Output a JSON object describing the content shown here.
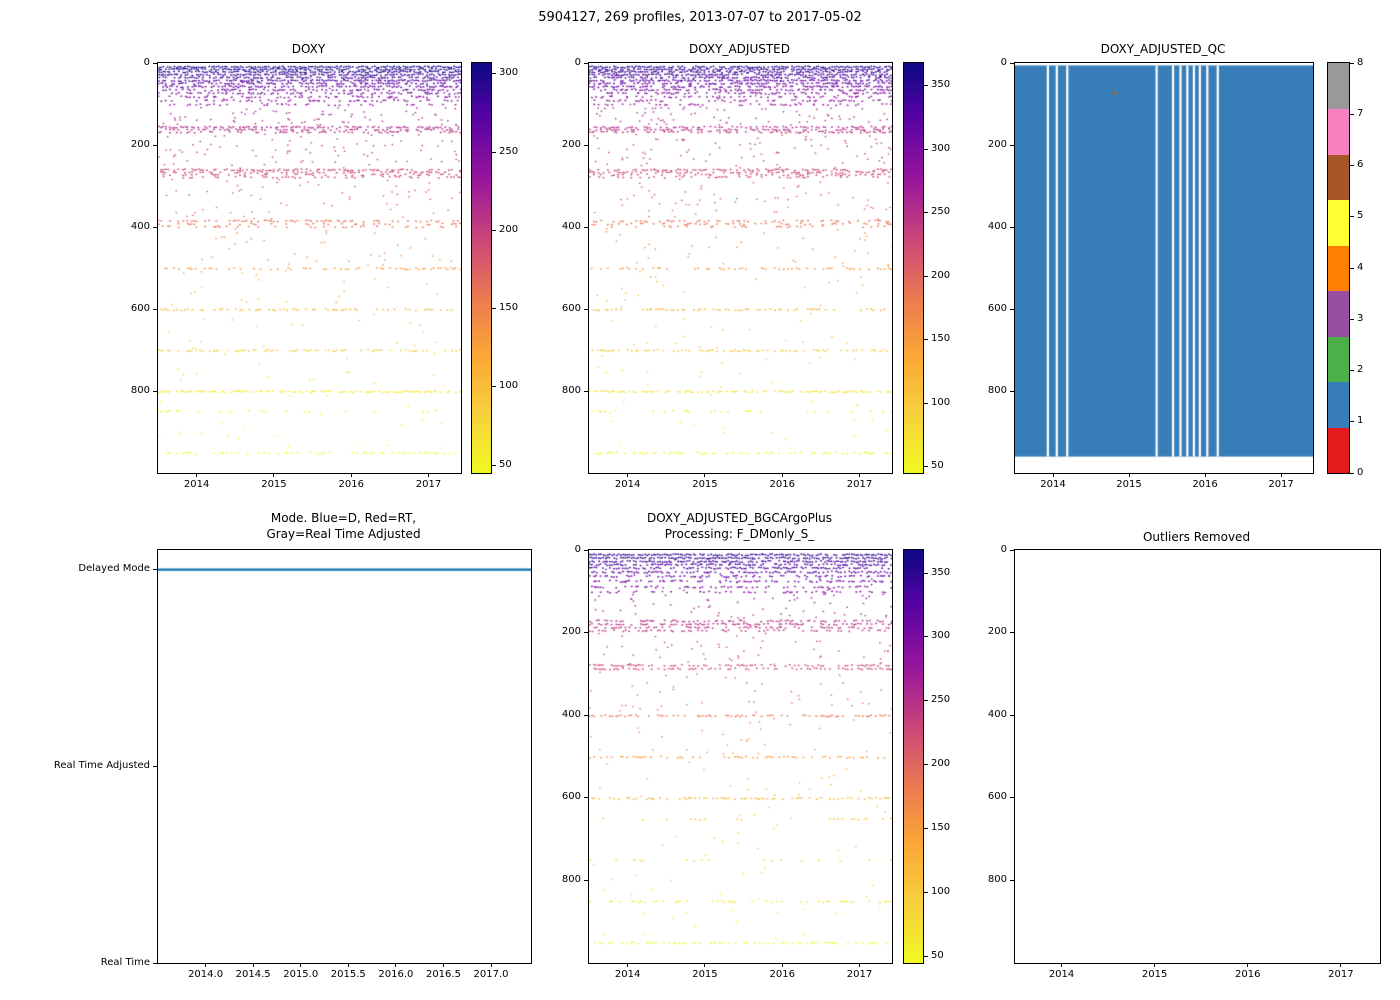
{
  "figure_title": "5904127, 269 profiles, 2013-07-07 to 2017-05-02",
  "colors": {
    "background": "#ffffff",
    "axis": "#000000",
    "mode_line_blue": "#1f77b4",
    "qc_fill": "#377eb8"
  },
  "plasma_reversed_stops": [
    {
      "t": 0.0,
      "c": "#0d0887"
    },
    {
      "t": 0.14,
      "c": "#5b02a3"
    },
    {
      "t": 0.29,
      "c": "#9a179b"
    },
    {
      "t": 0.43,
      "c": "#ca4678"
    },
    {
      "t": 0.57,
      "c": "#eb7852"
    },
    {
      "t": 0.71,
      "c": "#fba636"
    },
    {
      "t": 0.86,
      "c": "#f7d13d"
    },
    {
      "t": 1.0,
      "c": "#f0f921"
    }
  ],
  "chart_data": [
    {
      "name": "doxy",
      "type": "scatter",
      "title": "DOXY",
      "xlabel": "",
      "ylabel": "",
      "xlim": [
        2013.5,
        2017.42
      ],
      "x_ticks": [
        2014,
        2015,
        2016,
        2017
      ],
      "ylim": [
        0,
        1000
      ],
      "y_ticks": [
        0,
        200,
        400,
        600,
        800
      ],
      "y_inverted": true,
      "colorbar": {
        "vmin": 45,
        "vmax": 307,
        "ticks": [
          50,
          100,
          150,
          200,
          250,
          300
        ]
      },
      "bands": [
        {
          "d": 8,
          "v": 302,
          "p": 0.92
        },
        {
          "d": 14,
          "v": 297,
          "p": 0.85
        },
        {
          "d": 20,
          "v": 292,
          "p": 0.8
        },
        {
          "d": 27,
          "v": 287,
          "p": 0.82
        },
        {
          "d": 34,
          "v": 281,
          "p": 0.72
        },
        {
          "d": 41,
          "v": 276,
          "p": 0.75
        },
        {
          "d": 48,
          "v": 270,
          "p": 0.62
        },
        {
          "d": 56,
          "v": 264,
          "p": 0.66
        },
        {
          "d": 64,
          "v": 258,
          "p": 0.52
        },
        {
          "d": 72,
          "v": 252,
          "p": 0.46
        },
        {
          "d": 81,
          "v": 246,
          "p": 0.4
        },
        {
          "d": 90,
          "v": 241,
          "p": 0.32
        },
        {
          "d": 100,
          "v": 235,
          "p": 0.26
        },
        {
          "d": 155,
          "v": 216,
          "p": 0.6
        },
        {
          "d": 161,
          "v": 213,
          "p": 0.5
        },
        {
          "d": 167,
          "v": 210,
          "p": 0.44
        },
        {
          "d": 259,
          "v": 198,
          "p": 0.5
        },
        {
          "d": 265,
          "v": 196,
          "p": 0.42
        },
        {
          "d": 271,
          "v": 194,
          "p": 0.38
        },
        {
          "d": 277,
          "v": 192,
          "p": 0.3
        },
        {
          "d": 384,
          "v": 163,
          "p": 0.4
        },
        {
          "d": 391,
          "v": 160,
          "p": 0.32
        },
        {
          "d": 398,
          "v": 157,
          "p": 0.25
        },
        {
          "d": 500,
          "v": 128,
          "p": 0.4
        },
        {
          "d": 600,
          "v": 106,
          "p": 0.45
        },
        {
          "d": 700,
          "v": 86,
          "p": 0.5
        },
        {
          "d": 800,
          "v": 62,
          "p": 0.65
        },
        {
          "d": 848,
          "v": 52,
          "p": 0.16
        },
        {
          "d": 950,
          "v": 40,
          "p": 0.4
        }
      ],
      "noise": [
        {
          "a": 20,
          "b": 100,
          "v1": 290,
          "v2": 236,
          "n": 60
        },
        {
          "a": 105,
          "b": 150,
          "v1": 230,
          "v2": 218,
          "n": 70
        },
        {
          "a": 172,
          "b": 255,
          "v1": 208,
          "v2": 200,
          "n": 80
        },
        {
          "a": 282,
          "b": 380,
          "v1": 190,
          "v2": 165,
          "n": 60
        },
        {
          "a": 402,
          "b": 495,
          "v1": 155,
          "v2": 130,
          "n": 36
        },
        {
          "a": 505,
          "b": 595,
          "v1": 126,
          "v2": 108,
          "n": 22
        },
        {
          "a": 608,
          "b": 695,
          "v1": 104,
          "v2": 88,
          "n": 18
        },
        {
          "a": 705,
          "b": 795,
          "v1": 84,
          "v2": 64,
          "n": 16
        },
        {
          "a": 805,
          "b": 945,
          "v1": 60,
          "v2": 42,
          "n": 22
        }
      ]
    },
    {
      "name": "doxy_adjusted",
      "type": "scatter",
      "title": "DOXY_ADJUSTED",
      "xlabel": "",
      "ylabel": "",
      "xlim": [
        2013.5,
        2017.42
      ],
      "x_ticks": [
        2014,
        2015,
        2016,
        2017
      ],
      "ylim": [
        0,
        1000
      ],
      "y_ticks": [
        0,
        200,
        400,
        600,
        800
      ],
      "y_inverted": true,
      "colorbar": {
        "vmin": 45,
        "vmax": 368,
        "ticks": [
          50,
          100,
          150,
          200,
          250,
          300,
          350
        ]
      },
      "bands_from": 0,
      "value_scale": 1.17
    },
    {
      "name": "doxy_adjusted_qc",
      "type": "heatmap",
      "title": "DOXY_ADJUSTED_QC",
      "xlabel": "",
      "ylabel": "",
      "xlim": [
        2013.5,
        2017.42
      ],
      "x_ticks": [
        2014,
        2015,
        2016,
        2017
      ],
      "ylim": [
        0,
        1000
      ],
      "y_ticks": [
        0,
        200,
        400,
        600,
        800
      ],
      "y_inverted": true,
      "dominant_qc_value": 1,
      "fill": {
        "dmin": 6,
        "dmax": 960
      },
      "gaps": [
        0.11,
        0.14,
        0.175,
        0.475,
        0.53,
        0.555,
        0.578,
        0.6,
        0.62,
        0.645,
        0.68
      ],
      "specks": [
        {
          "x": 0.33,
          "d": 70,
          "color": "#c8641e"
        }
      ],
      "colorbar": {
        "discrete": true,
        "ticks": [
          0,
          1,
          2,
          3,
          4,
          5,
          6,
          7,
          8
        ],
        "colors": [
          "#e41a1c",
          "#377eb8",
          "#4daf4a",
          "#984ea3",
          "#ff7f00",
          "#ffff33",
          "#a65628",
          "#f781bf",
          "#999999"
        ]
      }
    },
    {
      "name": "mode",
      "type": "line",
      "title": "Mode. Blue=D, Red=RT,\nGray=Real Time Adjusted",
      "xlabel": "",
      "ylabel": "",
      "xlim": [
        2013.5,
        2017.42
      ],
      "x_tick_values": [
        2014.0,
        2014.5,
        2015.0,
        2015.5,
        2016.0,
        2016.5,
        2017.0
      ],
      "x_tick_labels": [
        "2014.0",
        "2014.5",
        "2015.0",
        "2015.5",
        "2016.0",
        "2016.5",
        "2017.0"
      ],
      "y_categories": [
        "Delayed Mode",
        "Real Time Adjusted",
        "Real Time"
      ],
      "y_category_values": [
        2,
        1,
        0
      ],
      "ylim": [
        0,
        2.1
      ],
      "line_category": "Delayed Mode",
      "line_value": 2,
      "line_color": "#1f77b4"
    },
    {
      "name": "doxy_adjusted_bgcargoplus",
      "type": "scatter",
      "title": "DOXY_ADJUSTED_BGCArgoPlus\nProcessing: F_DMonly_S_",
      "xlabel": "",
      "ylabel": "",
      "xlim": [
        2013.5,
        2017.42
      ],
      "x_ticks": [
        2014,
        2015,
        2016,
        2017
      ],
      "ylim": [
        0,
        1000
      ],
      "y_ticks": [
        0,
        200,
        400,
        600,
        800
      ],
      "y_inverted": true,
      "colorbar": {
        "vmin": 45,
        "vmax": 368,
        "ticks": [
          50,
          100,
          150,
          200,
          250,
          300,
          350
        ]
      },
      "bands": [
        {
          "d": 10,
          "v": 350,
          "p": 0.9
        },
        {
          "d": 18,
          "v": 344,
          "p": 0.85
        },
        {
          "d": 26,
          "v": 338,
          "p": 0.8
        },
        {
          "d": 34,
          "v": 332,
          "p": 0.76
        },
        {
          "d": 42,
          "v": 326,
          "p": 0.7
        },
        {
          "d": 52,
          "v": 320,
          "p": 0.64
        },
        {
          "d": 62,
          "v": 314,
          "p": 0.56
        },
        {
          "d": 74,
          "v": 306,
          "p": 0.5
        },
        {
          "d": 88,
          "v": 298,
          "p": 0.42
        },
        {
          "d": 100,
          "v": 292,
          "p": 0.35
        },
        {
          "d": 170,
          "v": 252,
          "p": 0.55
        },
        {
          "d": 178,
          "v": 248,
          "p": 0.6
        },
        {
          "d": 186,
          "v": 244,
          "p": 0.5
        },
        {
          "d": 194,
          "v": 240,
          "p": 0.4
        },
        {
          "d": 278,
          "v": 224,
          "p": 0.55
        },
        {
          "d": 286,
          "v": 220,
          "p": 0.45
        },
        {
          "d": 400,
          "v": 185,
          "p": 0.5
        },
        {
          "d": 500,
          "v": 148,
          "p": 0.45
        },
        {
          "d": 600,
          "v": 122,
          "p": 0.5
        },
        {
          "d": 650,
          "v": 110,
          "p": 0.16
        },
        {
          "d": 750,
          "v": 90,
          "p": 0.18
        },
        {
          "d": 850,
          "v": 62,
          "p": 0.35
        },
        {
          "d": 950,
          "v": 46,
          "p": 0.4
        }
      ],
      "noise": [
        {
          "a": 15,
          "b": 100,
          "v1": 346,
          "v2": 292,
          "n": 50
        },
        {
          "a": 105,
          "b": 165,
          "v1": 285,
          "v2": 256,
          "n": 60
        },
        {
          "a": 200,
          "b": 275,
          "v1": 238,
          "v2": 226,
          "n": 50
        },
        {
          "a": 292,
          "b": 395,
          "v1": 218,
          "v2": 188,
          "n": 45
        },
        {
          "a": 405,
          "b": 495,
          "v1": 183,
          "v2": 150,
          "n": 30
        },
        {
          "a": 505,
          "b": 595,
          "v1": 146,
          "v2": 124,
          "n": 20
        },
        {
          "a": 605,
          "b": 745,
          "v1": 120,
          "v2": 92,
          "n": 18
        },
        {
          "a": 755,
          "b": 845,
          "v1": 88,
          "v2": 64,
          "n": 14
        },
        {
          "a": 855,
          "b": 945,
          "v1": 60,
          "v2": 48,
          "n": 14
        }
      ]
    },
    {
      "name": "outliers_removed",
      "type": "scatter",
      "title": "Outliers Removed",
      "xlabel": "",
      "ylabel": "",
      "xlim": [
        2013.5,
        2017.42
      ],
      "x_ticks": [
        2014,
        2015,
        2016,
        2017
      ],
      "ylim": [
        0,
        1000
      ],
      "y_ticks": [
        0,
        200,
        400,
        600,
        800
      ],
      "y_inverted": true,
      "bands": [],
      "noise": []
    }
  ]
}
